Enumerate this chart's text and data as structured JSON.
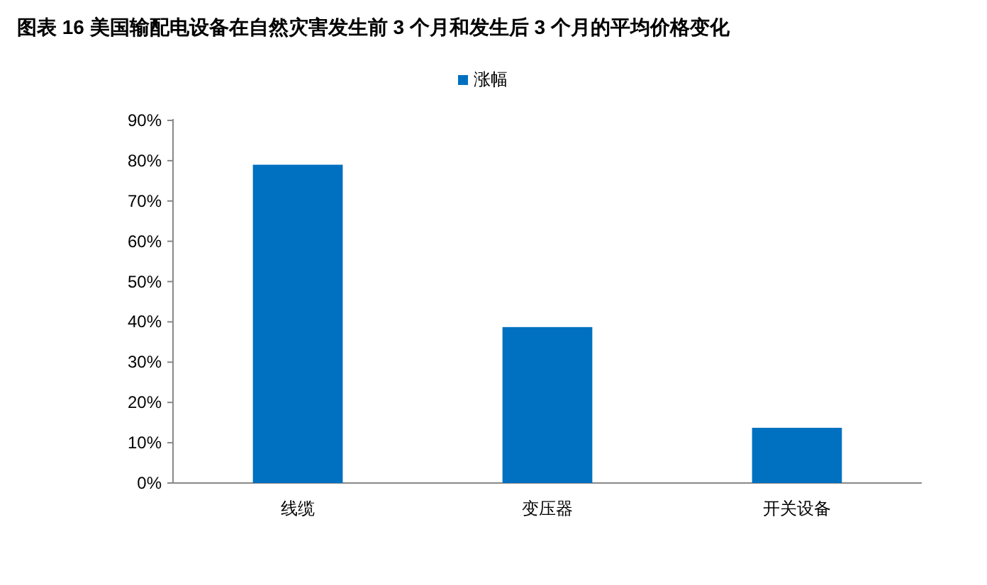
{
  "chart_data": {
    "type": "bar",
    "title": "图表 16  美国输配电设备在自然灾害发生前 3 个月和发生后 3 个月的平均价格变化",
    "categories": [
      "线缆",
      "变压器",
      "开关设备"
    ],
    "series": [
      {
        "name": "涨幅",
        "color": "#0070c0",
        "values": [
          79,
          38.7,
          13.7
        ]
      }
    ],
    "ylim": [
      0,
      90
    ],
    "yticks": [
      {
        "value": 0,
        "label": "0%"
      },
      {
        "value": 10,
        "label": "10%"
      },
      {
        "value": 20,
        "label": "20%"
      },
      {
        "value": 30,
        "label": "30%"
      },
      {
        "value": 40,
        "label": "40%"
      },
      {
        "value": 50,
        "label": "50%"
      },
      {
        "value": 60,
        "label": "60%"
      },
      {
        "value": 70,
        "label": "70%"
      },
      {
        "value": 80,
        "label": "80%"
      },
      {
        "value": 90,
        "label": "90%"
      }
    ],
    "legend": "top",
    "grid": false
  }
}
